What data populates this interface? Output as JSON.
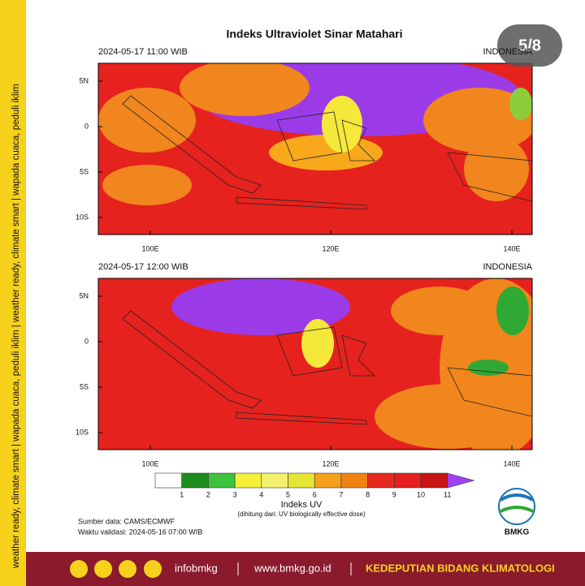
{
  "page_indicator": "5/8",
  "side_banner": "weather ready, climate smart  |  wapada cuaca, peduli iklim  |  weather ready, climate smart  |  wapada cuaca, peduli iklim",
  "title": "Indeks Ultraviolet Sinar Matahari",
  "panels": [
    {
      "time": "2024-05-17  11:00 WIB",
      "region": "INDONESIA",
      "lat_labels": [
        "5N",
        "0",
        "5S",
        "10S"
      ],
      "lon_labels": [
        "100E",
        "120E",
        "140E"
      ]
    },
    {
      "time": "2024-05-17  12:00 WIB",
      "region": "INDONESIA",
      "lat_labels": [
        "5N",
        "0",
        "5S",
        "10S"
      ],
      "lon_labels": [
        "100E",
        "120E",
        "140E"
      ]
    }
  ],
  "colorbar": {
    "labels": [
      1,
      2,
      3,
      4,
      5,
      6,
      7,
      8,
      9,
      10,
      11
    ],
    "title": "Indeks UV",
    "note": "(dihitung dari: UV biologically effective dose)"
  },
  "source": "Sumber data: CAMS/ECMWF",
  "validity": "Waktu validasi: 2024-05-16 07:00 WIB",
  "logo": "BMKG",
  "footer": {
    "handle": "infobmkg",
    "website": "www.bmkg.go.id",
    "department": "KEDEPUTIAN BIDANG KLIMATOLOGI"
  }
}
